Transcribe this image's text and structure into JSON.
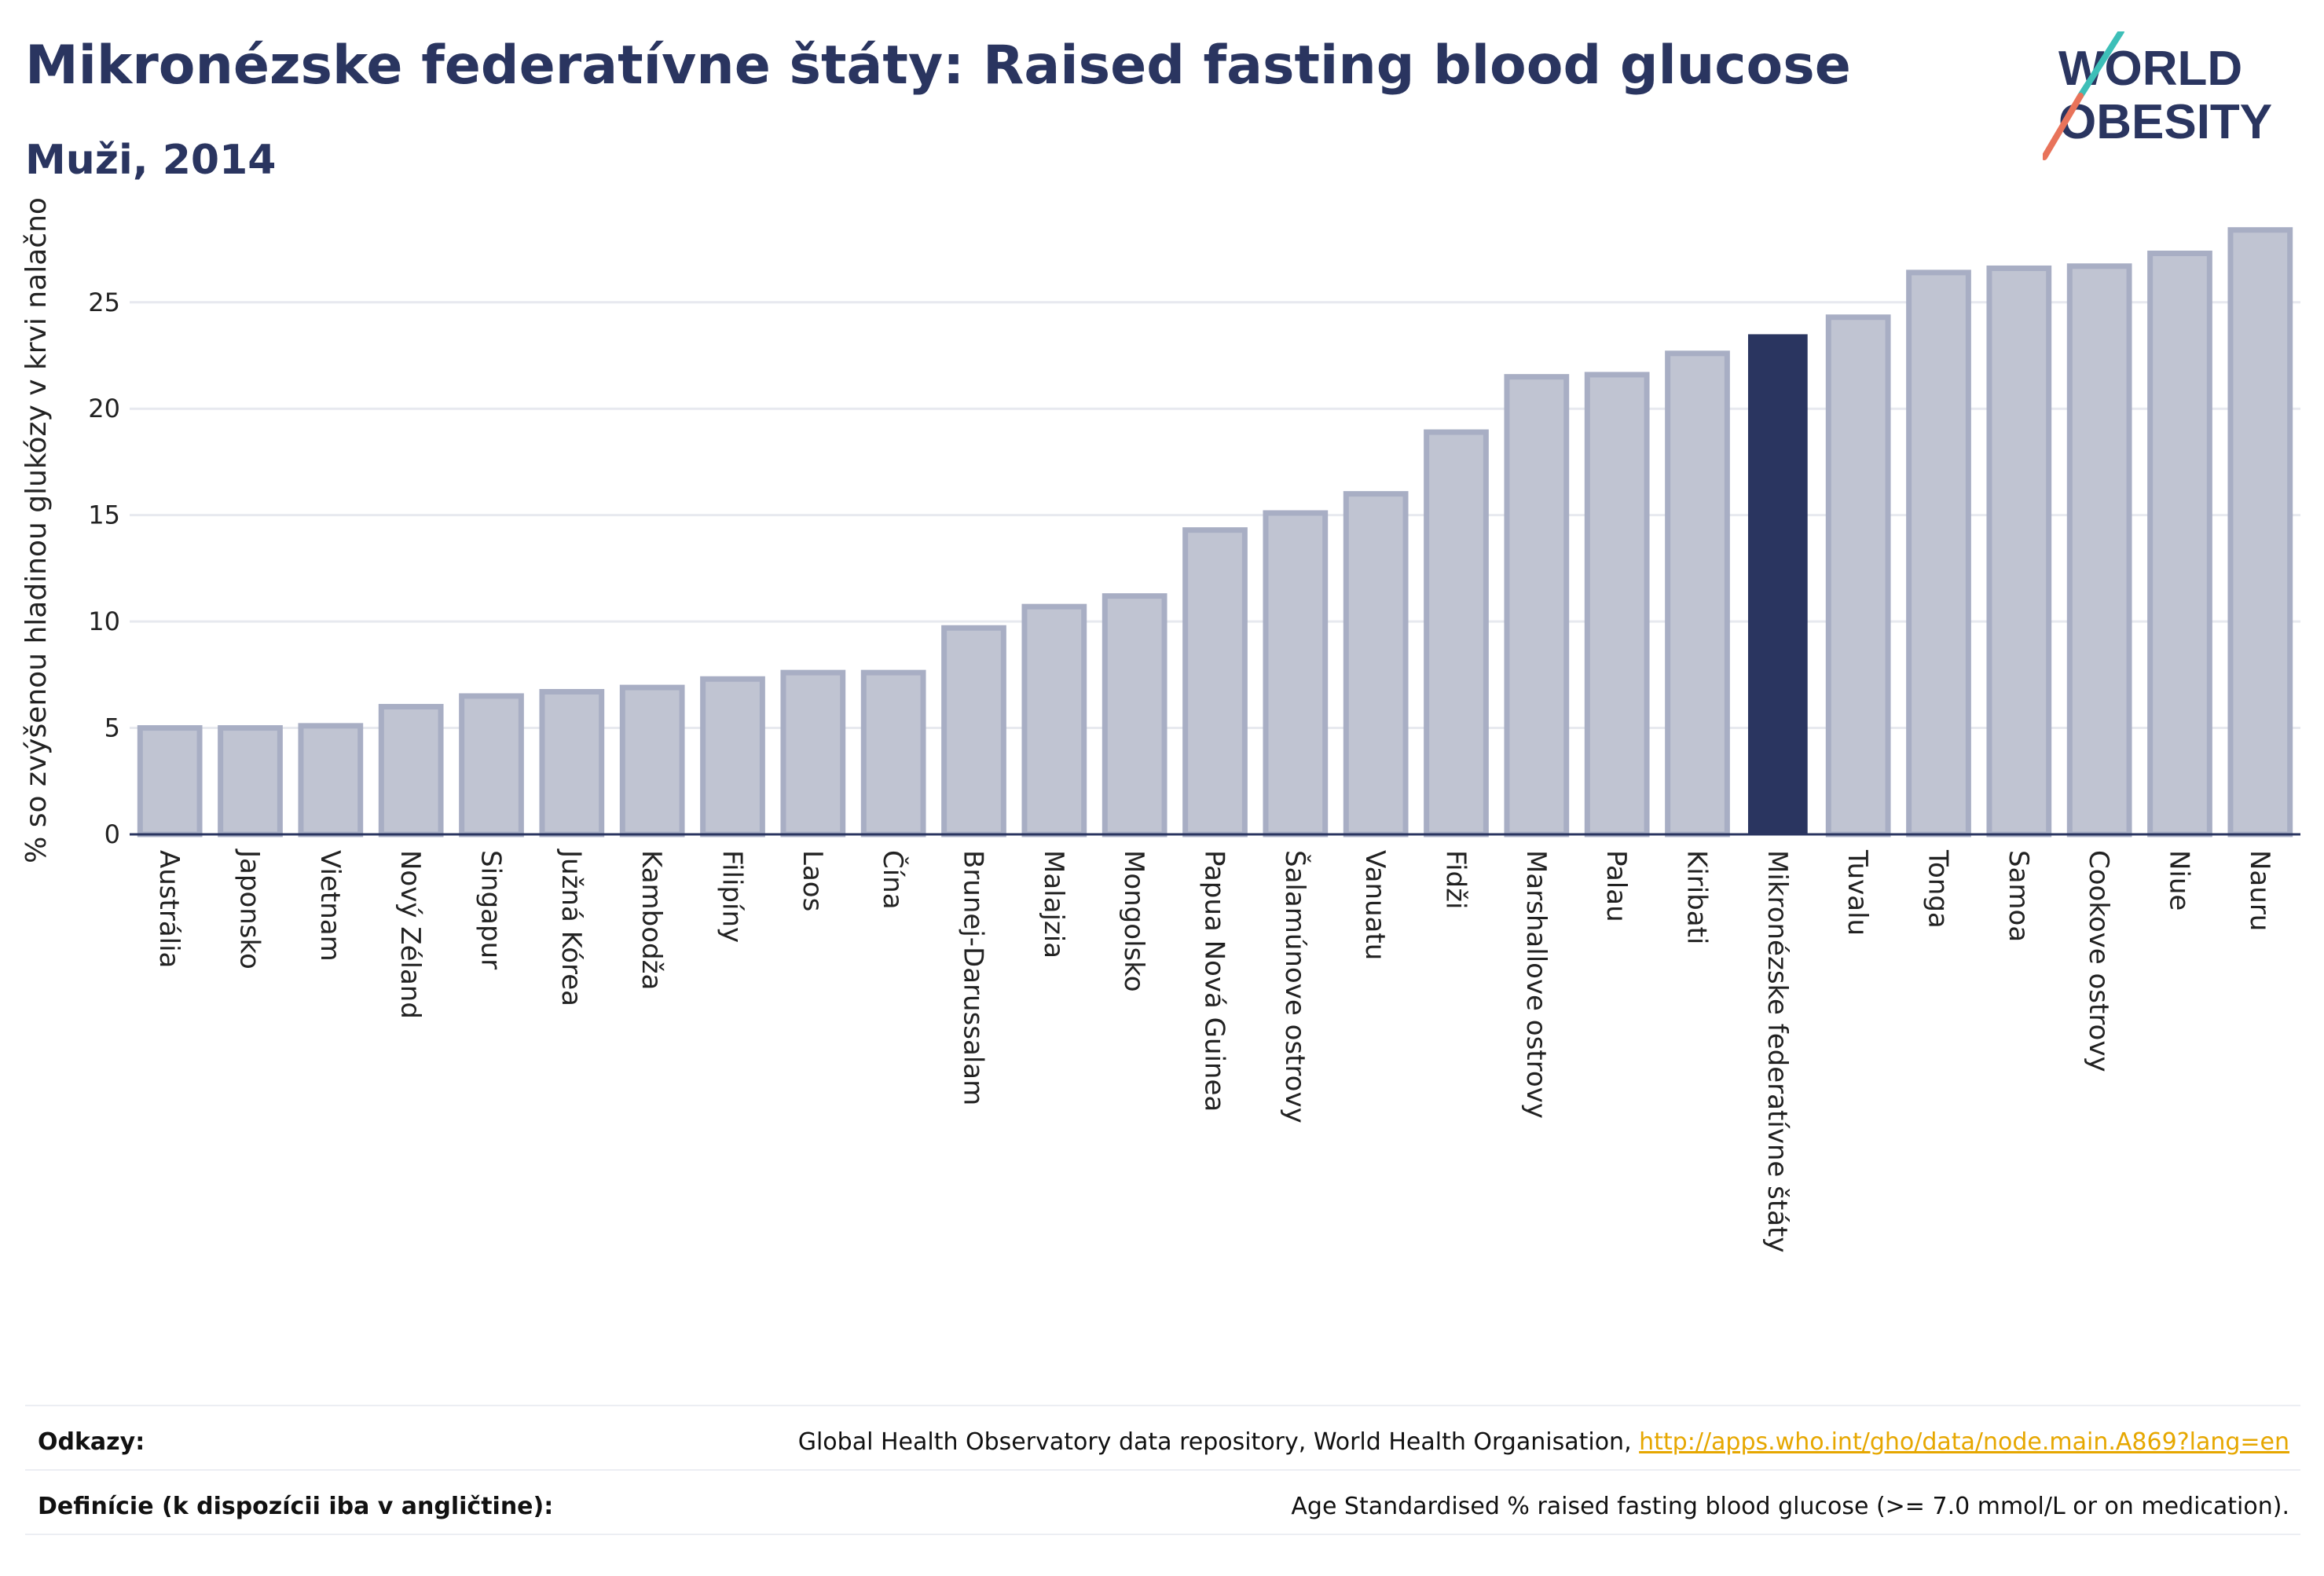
{
  "title": "Mikronézske federatívne štáty: Raised fasting blood glucose",
  "subtitle": "Muži, 2014",
  "logo": {
    "line1": "WORLD",
    "line2": "OBESITY"
  },
  "colors": {
    "bar": "#c0c4d2",
    "bar_stroke": "#a8aec4",
    "highlight": "#2a3560",
    "grid": "#e7e9ef",
    "text": "#2a3560"
  },
  "footer": {
    "sources_label": "Odkazy:",
    "sources_text": "Global Health Observatory data repository, World Health Organisation, ",
    "sources_link": "http://apps.who.int/gho/data/node.main.A869?lang=en",
    "definitions_label": "Definície (k dispozícii iba v angličtine):",
    "definitions_text": "Age Standardised % raised fasting blood glucose (>= 7.0 mmol/L or on medication)."
  },
  "chart_data": {
    "type": "bar",
    "ylabel": "% so zvýšenou hladinou glukózy v krvi nalačno",
    "ylim": [
      0,
      28.5
    ],
    "yticks": [
      0,
      5,
      10,
      15,
      20,
      25
    ],
    "grid": true,
    "highlight": "Mikronézske federatívne štáty",
    "categories": [
      "Austrália",
      "Japonsko",
      "Vietnam",
      "Nový Zéland",
      "Singapur",
      "Južná Kórea",
      "Kambodža",
      "Filipíny",
      "Laos",
      "Čína",
      "Brunej-Darussalam",
      "Malajzia",
      "Mongolsko",
      "Papua Nová Guinea",
      "Šalamúnove ostrovy",
      "Vanuatu",
      "Fidži",
      "Marshallove ostrovy",
      "Palau",
      "Kiribati",
      "Mikronézske federatívne štáty",
      "Tuvalu",
      "Tonga",
      "Samoa",
      "Cookove ostrovy",
      "Niue",
      "Nauru"
    ],
    "values": [
      5.0,
      5.0,
      5.1,
      6.0,
      6.5,
      6.7,
      6.9,
      7.3,
      7.6,
      7.6,
      9.7,
      10.7,
      11.2,
      14.3,
      15.1,
      16.0,
      18.9,
      21.5,
      21.6,
      22.6,
      23.5,
      24.3,
      26.4,
      26.6,
      26.7,
      27.3,
      28.4
    ]
  }
}
